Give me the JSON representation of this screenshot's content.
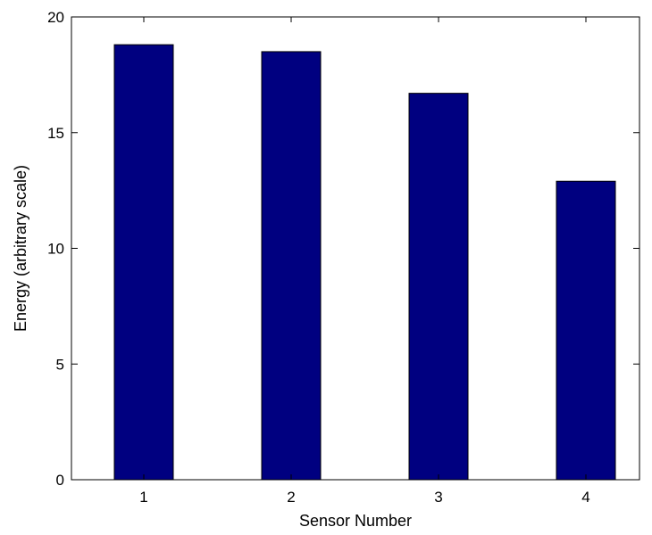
{
  "chart_data": {
    "type": "bar",
    "title": "",
    "xlabel": "Sensor Number",
    "ylabel": "Energy (arbitrary scale)",
    "categories": [
      "1",
      "2",
      "3",
      "4"
    ],
    "values": [
      18.8,
      18.5,
      16.7,
      12.9
    ],
    "ylim": [
      0,
      20
    ],
    "yticks": [
      0,
      5,
      10,
      15,
      20
    ],
    "grid": false,
    "bar_color": "#000080"
  }
}
